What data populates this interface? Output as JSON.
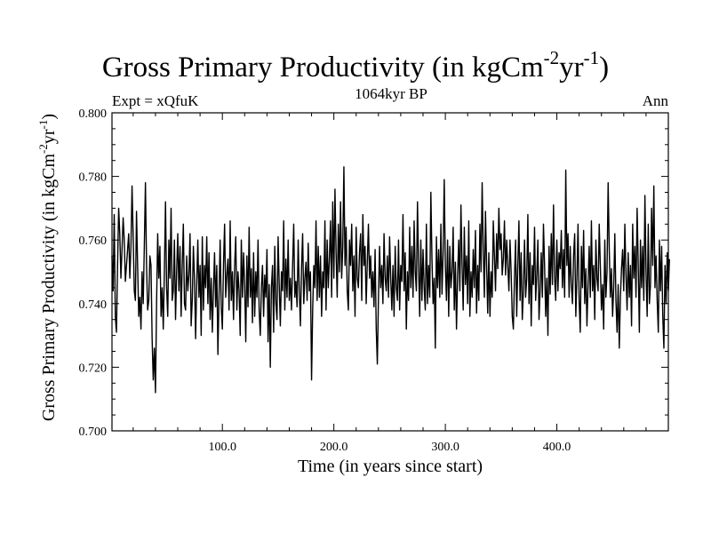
{
  "chart_data": {
    "type": "line",
    "title": "Gross Primary Productivity (in kgCm",
    "title_exp1": "-2",
    "title_mid": "yr",
    "title_exp2": "-1",
    "title_end": ")",
    "experiment_label": "Expt = xQfuK",
    "period_label": "1064kyr BP",
    "season_label": "Ann",
    "xlabel": "Time (in years since start)",
    "ylabel": "Gross Primary Productivity (in kgCm",
    "ylabel_exp1": "-2",
    "ylabel_mid": "yr",
    "ylabel_exp2": "-1",
    "ylabel_end": ")",
    "xlim": [
      1,
      500
    ],
    "ylim": [
      0.7,
      0.8
    ],
    "x_ticks": [
      100,
      200,
      300,
      400
    ],
    "x_tick_labels": [
      "100.0",
      "200.0",
      "300.0",
      "400.0"
    ],
    "y_ticks": [
      0.7,
      0.72,
      0.74,
      0.76,
      0.78,
      0.8
    ],
    "y_tick_labels": [
      "0.700",
      "0.720",
      "0.740",
      "0.760",
      "0.780",
      "0.800"
    ],
    "grid": false,
    "series": [
      {
        "name": "Gross Primary Productivity",
        "x_start": 1,
        "x_step": 1,
        "values": [
          0.755,
          0.744,
          0.768,
          0.736,
          0.731,
          0.752,
          0.77,
          0.762,
          0.748,
          0.757,
          0.767,
          0.76,
          0.747,
          0.752,
          0.757,
          0.762,
          0.748,
          0.758,
          0.777,
          0.761,
          0.744,
          0.741,
          0.769,
          0.752,
          0.736,
          0.742,
          0.732,
          0.75,
          0.74,
          0.758,
          0.778,
          0.752,
          0.738,
          0.741,
          0.755,
          0.752,
          0.729,
          0.716,
          0.726,
          0.712,
          0.74,
          0.762,
          0.748,
          0.758,
          0.736,
          0.745,
          0.732,
          0.75,
          0.772,
          0.745,
          0.736,
          0.76,
          0.748,
          0.77,
          0.741,
          0.744,
          0.76,
          0.735,
          0.75,
          0.762,
          0.744,
          0.758,
          0.736,
          0.752,
          0.765,
          0.74,
          0.738,
          0.755,
          0.744,
          0.749,
          0.762,
          0.733,
          0.741,
          0.758,
          0.748,
          0.729,
          0.746,
          0.76,
          0.742,
          0.752,
          0.73,
          0.761,
          0.738,
          0.752,
          0.745,
          0.761,
          0.74,
          0.756,
          0.735,
          0.748,
          0.731,
          0.744,
          0.756,
          0.739,
          0.752,
          0.724,
          0.742,
          0.76,
          0.739,
          0.732,
          0.752,
          0.765,
          0.742,
          0.749,
          0.754,
          0.738,
          0.766,
          0.741,
          0.75,
          0.735,
          0.752,
          0.761,
          0.738,
          0.75,
          0.744,
          0.73,
          0.76,
          0.742,
          0.756,
          0.746,
          0.728,
          0.755,
          0.739,
          0.764,
          0.742,
          0.751,
          0.734,
          0.756,
          0.736,
          0.75,
          0.742,
          0.76,
          0.738,
          0.73,
          0.745,
          0.752,
          0.736,
          0.749,
          0.742,
          0.757,
          0.728,
          0.746,
          0.72,
          0.745,
          0.752,
          0.731,
          0.758,
          0.74,
          0.735,
          0.761,
          0.746,
          0.733,
          0.75,
          0.744,
          0.766,
          0.738,
          0.754,
          0.742,
          0.76,
          0.741,
          0.748,
          0.738,
          0.752,
          0.765,
          0.742,
          0.747,
          0.739,
          0.76,
          0.744,
          0.733,
          0.751,
          0.762,
          0.74,
          0.748,
          0.753,
          0.741,
          0.759,
          0.744,
          0.75,
          0.716,
          0.738,
          0.752,
          0.745,
          0.766,
          0.741,
          0.758,
          0.742,
          0.755,
          0.736,
          0.75,
          0.745,
          0.766,
          0.738,
          0.76,
          0.745,
          0.754,
          0.766,
          0.742,
          0.772,
          0.748,
          0.776,
          0.756,
          0.742,
          0.765,
          0.75,
          0.772,
          0.748,
          0.758,
          0.783,
          0.752,
          0.764,
          0.744,
          0.738,
          0.76,
          0.752,
          0.765,
          0.744,
          0.755,
          0.736,
          0.764,
          0.748,
          0.745,
          0.756,
          0.762,
          0.741,
          0.768,
          0.752,
          0.758,
          0.74,
          0.753,
          0.765,
          0.748,
          0.755,
          0.742,
          0.75,
          0.739,
          0.757,
          0.732,
          0.721,
          0.742,
          0.758,
          0.745,
          0.752,
          0.74,
          0.762,
          0.748,
          0.744,
          0.755,
          0.742,
          0.761,
          0.748,
          0.738,
          0.752,
          0.736,
          0.758,
          0.745,
          0.741,
          0.76,
          0.738,
          0.752,
          0.747,
          0.768,
          0.744,
          0.756,
          0.732,
          0.75,
          0.741,
          0.764,
          0.745,
          0.758,
          0.742,
          0.766,
          0.75,
          0.744,
          0.772,
          0.752,
          0.736,
          0.76,
          0.741,
          0.757,
          0.745,
          0.738,
          0.765,
          0.74,
          0.752,
          0.742,
          0.775,
          0.754,
          0.74,
          0.748,
          0.726,
          0.761,
          0.745,
          0.757,
          0.742,
          0.765,
          0.743,
          0.756,
          0.779,
          0.752,
          0.741,
          0.76,
          0.736,
          0.758,
          0.745,
          0.75,
          0.764,
          0.738,
          0.753,
          0.732,
          0.749,
          0.76,
          0.744,
          0.771,
          0.752,
          0.738,
          0.764,
          0.746,
          0.755,
          0.74,
          0.766,
          0.736,
          0.75,
          0.742,
          0.757,
          0.745,
          0.763,
          0.737,
          0.752,
          0.741,
          0.765,
          0.75,
          0.778,
          0.757,
          0.742,
          0.769,
          0.752,
          0.737,
          0.756,
          0.736,
          0.75,
          0.742,
          0.766,
          0.755,
          0.744,
          0.762,
          0.751,
          0.77,
          0.757,
          0.762,
          0.749,
          0.754,
          0.766,
          0.749,
          0.76,
          0.752,
          0.744,
          0.76,
          0.75,
          0.736,
          0.732,
          0.748,
          0.76,
          0.736,
          0.752,
          0.766,
          0.741,
          0.756,
          0.735,
          0.744,
          0.76,
          0.742,
          0.748,
          0.768,
          0.74,
          0.756,
          0.733,
          0.752,
          0.746,
          0.764,
          0.741,
          0.749,
          0.76,
          0.735,
          0.744,
          0.756,
          0.742,
          0.765,
          0.752,
          0.736,
          0.748,
          0.73,
          0.758,
          0.743,
          0.762,
          0.746,
          0.771,
          0.748,
          0.741,
          0.76,
          0.744,
          0.756,
          0.751,
          0.763,
          0.745,
          0.757,
          0.742,
          0.782,
          0.752,
          0.762,
          0.742,
          0.758,
          0.746,
          0.74,
          0.755,
          0.762,
          0.736,
          0.748,
          0.765,
          0.741,
          0.731,
          0.758,
          0.745,
          0.763,
          0.74,
          0.751,
          0.733,
          0.746,
          0.758,
          0.742,
          0.766,
          0.744,
          0.752,
          0.735,
          0.76,
          0.748,
          0.744,
          0.765,
          0.752,
          0.738,
          0.746,
          0.732,
          0.76,
          0.742,
          0.75,
          0.778,
          0.757,
          0.742,
          0.751,
          0.736,
          0.745,
          0.762,
          0.741,
          0.731,
          0.746,
          0.726,
          0.742,
          0.751,
          0.757,
          0.744,
          0.765,
          0.749,
          0.738,
          0.756,
          0.742,
          0.752,
          0.733,
          0.765,
          0.748,
          0.758,
          0.742,
          0.77,
          0.752,
          0.731,
          0.76,
          0.745,
          0.758,
          0.741,
          0.774,
          0.75,
          0.736,
          0.765,
          0.74,
          0.746,
          0.77,
          0.752,
          0.777,
          0.745,
          0.755,
          0.741,
          0.731,
          0.76,
          0.744,
          0.758,
          0.736,
          0.726,
          0.752,
          0.74,
          0.756,
          0.744,
          0.754
        ]
      }
    ]
  }
}
